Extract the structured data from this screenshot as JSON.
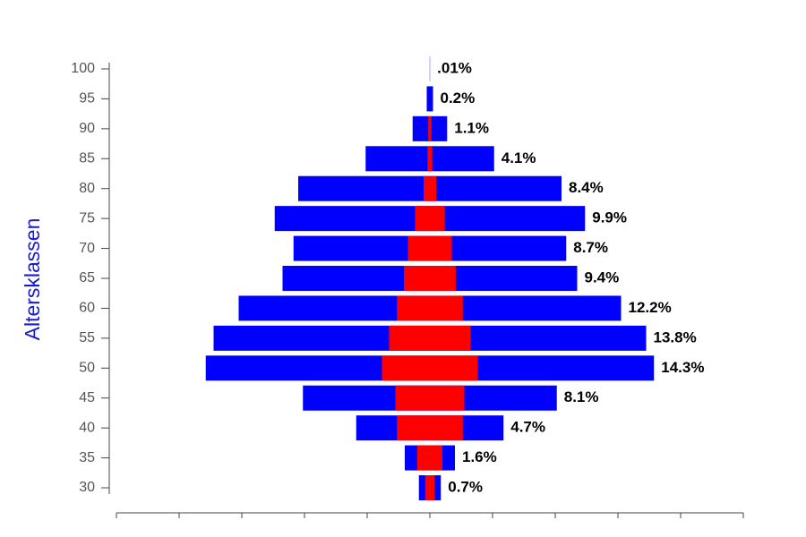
{
  "chart_data": {
    "type": "centered_bar",
    "y_label": "Altersklassen",
    "categories": [
      100,
      95,
      90,
      85,
      80,
      75,
      70,
      65,
      60,
      55,
      50,
      45,
      40,
      35,
      30
    ],
    "series": [
      {
        "color": "#0000ff",
        "values": [
          0.01,
          0.2,
          1.1,
          4.1,
          8.4,
          9.9,
          8.7,
          9.4,
          12.2,
          13.8,
          14.3,
          8.1,
          4.7,
          1.6,
          0.7
        ],
        "value_labels": [
          ".01%",
          "0.2%",
          "1.1%",
          "4.1%",
          "8.4%",
          "9.9%",
          "8.7%",
          "9.4%",
          "12.2%",
          "13.8%",
          "14.3%",
          "8.1%",
          "4.7%",
          "1.6%",
          "0.7%"
        ]
      },
      {
        "color": "#ff0000",
        "values": [
          0,
          0,
          0.1,
          0.15,
          0.4,
          0.95,
          1.4,
          1.65,
          2.1,
          2.6,
          3.06,
          2.2,
          2.1,
          0.8,
          0.3
        ]
      }
    ],
    "ylim": [
      28,
      101
    ],
    "yticks": [
      30,
      35,
      40,
      45,
      50,
      55,
      60,
      65,
      70,
      75,
      80,
      85,
      90,
      95,
      100
    ],
    "xlim": [
      -10,
      10
    ],
    "xticks": [
      -10,
      -8,
      -6,
      -4,
      -2,
      0,
      2,
      4,
      6,
      8,
      10
    ]
  }
}
